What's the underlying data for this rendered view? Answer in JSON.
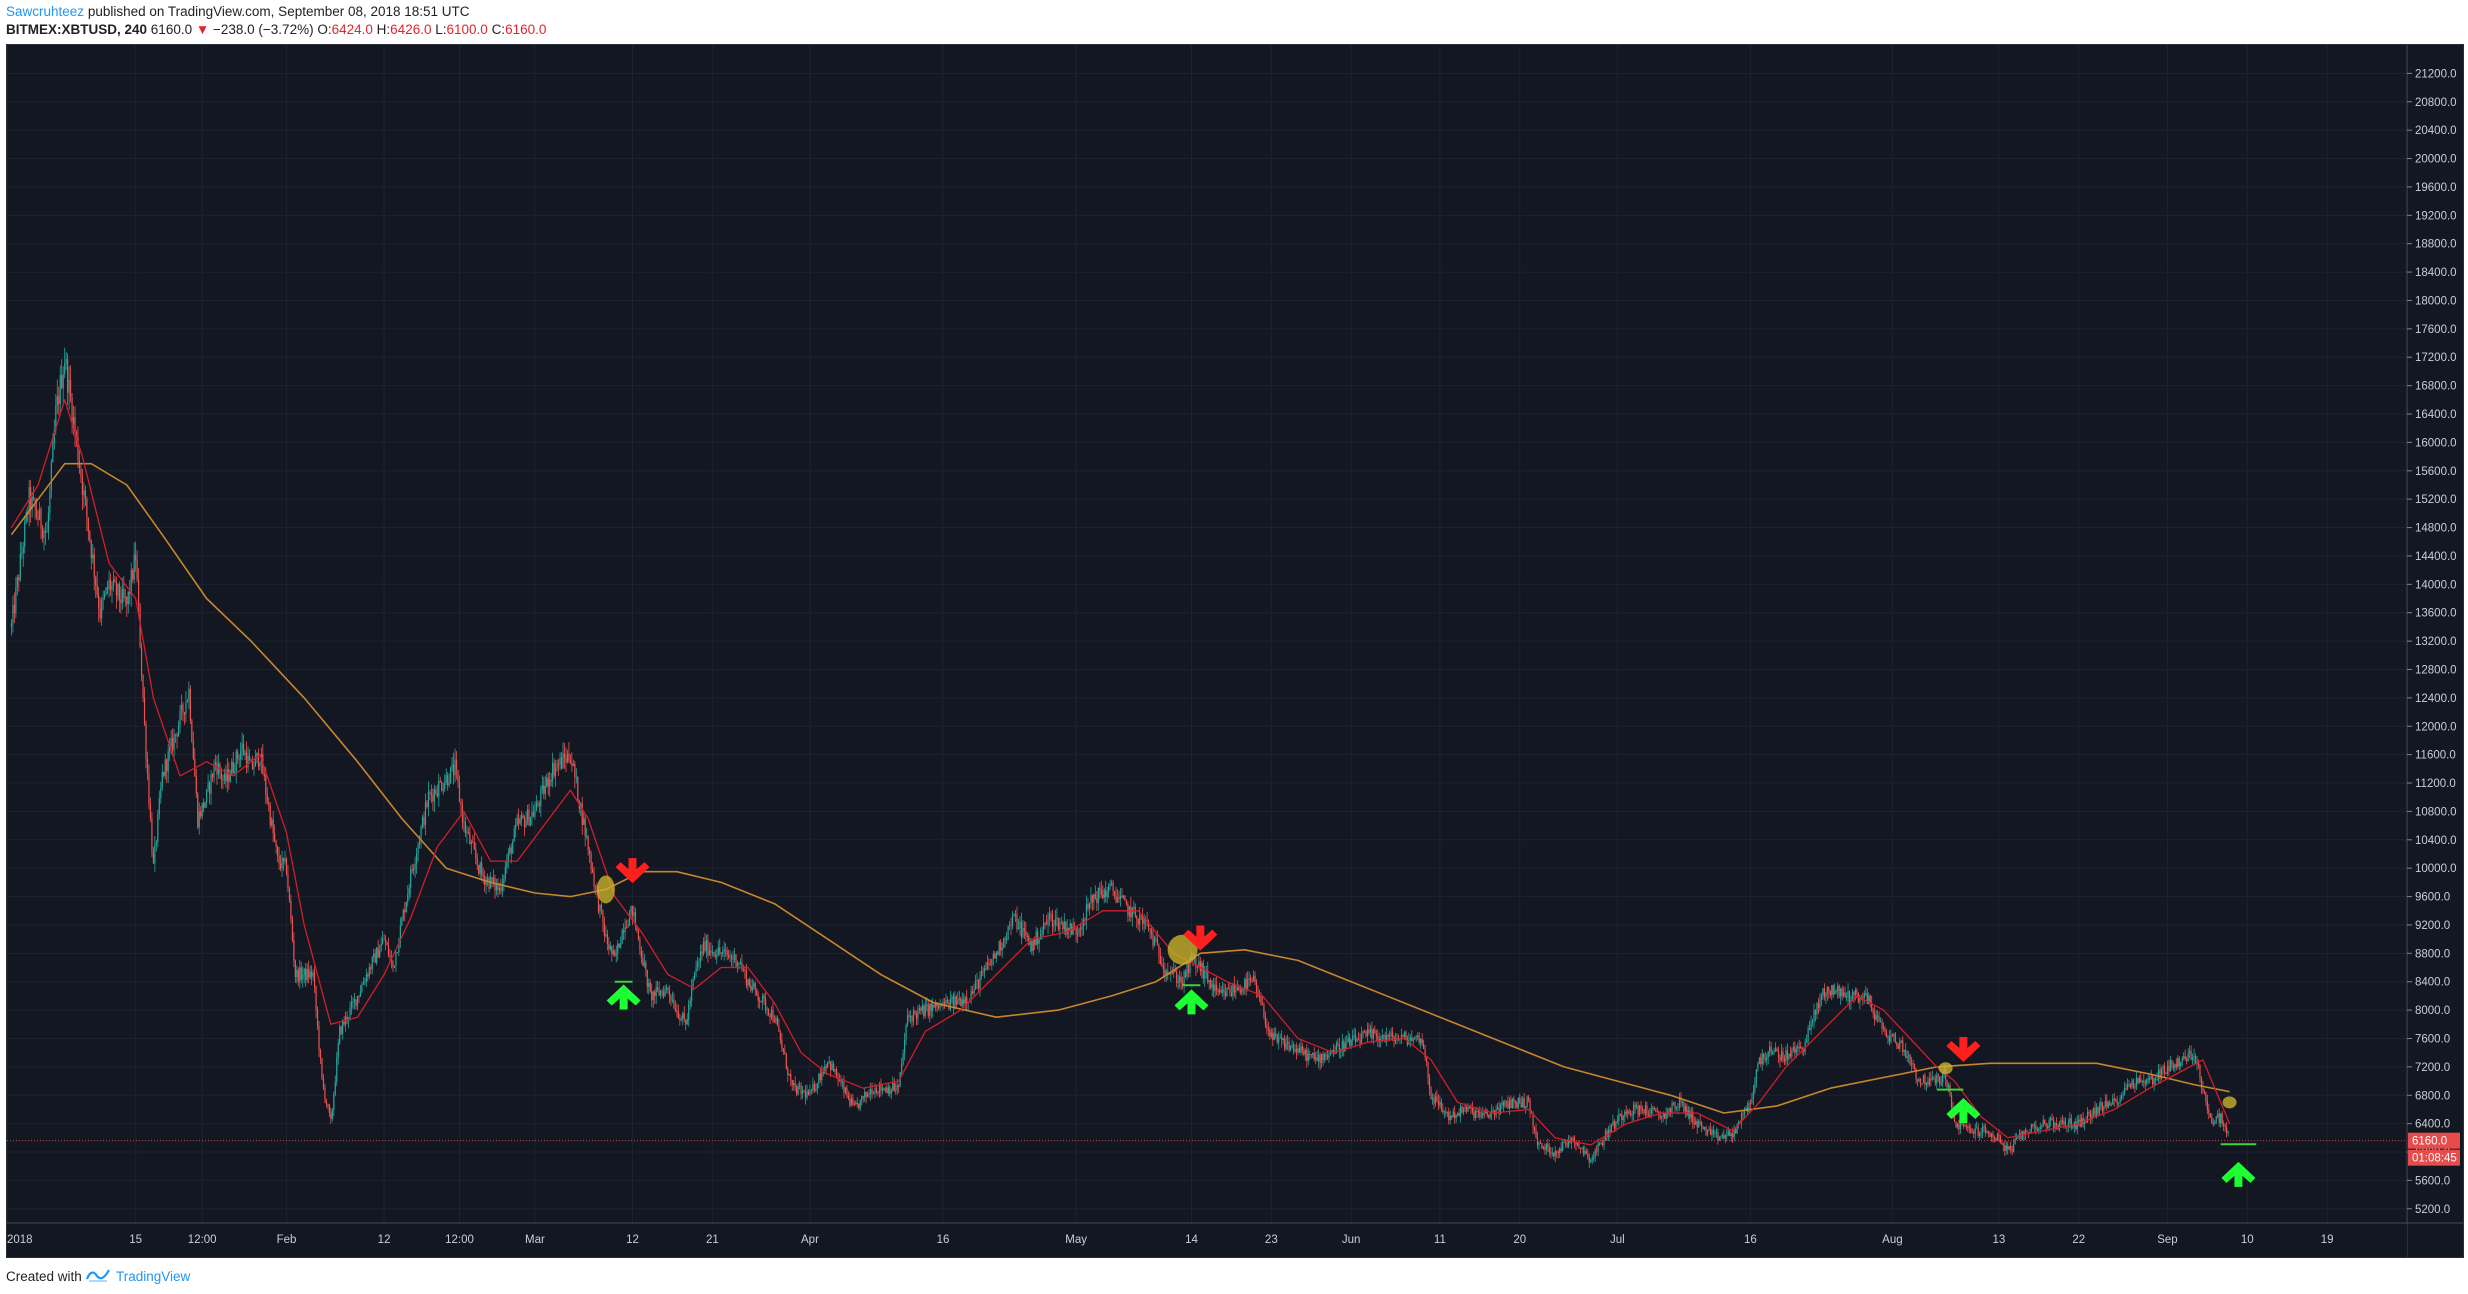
{
  "header": {
    "author": "Sawcruhteez",
    "published_text": "published on TradingView.com, September 08, 2018 18:51 UTC",
    "symbol": "BITMEX:XBTUSD, 240",
    "last": "6160.0",
    "change_arrow": "▼",
    "change": "−238.0 (−3.72%)",
    "o_label": "O:",
    "o_value": "6424.0",
    "h_label": "H:",
    "h_value": "6426.0",
    "l_label": "L:",
    "l_value": "6100.0",
    "c_label": "C:",
    "c_value": "6160.0"
  },
  "footer": {
    "created_with": "Created with",
    "brand": "TradingView"
  },
  "colors": {
    "background": "#131722",
    "grid": "#1e2230",
    "up_candle": "#26a69a",
    "down_candle": "#ef5350",
    "fast_ma": "#d11e2a",
    "slow_ma": "#c7862b",
    "highlight": "#c8b22a",
    "arrow_down": "#ff1f1f",
    "arrow_up": "#1cff32",
    "support_line": "#3cd23c",
    "price_label_bg": "#e74c4c"
  },
  "chart_data": {
    "type": "candlestick",
    "symbol": "BITMEX:XBTUSD",
    "interval": "240",
    "ylim": [
      5000,
      21600
    ],
    "y_ticks": [
      5200,
      5600,
      6000,
      6400,
      6800,
      7200,
      7600,
      8000,
      8400,
      8800,
      9200,
      9600,
      10000,
      10400,
      10800,
      11200,
      11600,
      12000,
      12400,
      12800,
      13200,
      13600,
      14000,
      14400,
      14800,
      15200,
      15600,
      16000,
      16400,
      16800,
      17200,
      17600,
      18000,
      18400,
      18800,
      19200,
      19600,
      20000,
      20400,
      20800,
      21200
    ],
    "x_range": [
      "2017-12-31T12:00",
      "2018-09-28"
    ],
    "x_ticks": [
      {
        "date": "2017-12-31T12:00",
        "label": "2018"
      },
      {
        "date": "2018-01-15",
        "label": "15"
      },
      {
        "date": "2018-01-22T12:00",
        "label": "12:00"
      },
      {
        "date": "2018-02-01",
        "label": "Feb"
      },
      {
        "date": "2018-02-12",
        "label": "12"
      },
      {
        "date": "2018-02-20T12:00",
        "label": "12:00"
      },
      {
        "date": "2018-03-01",
        "label": "Mar"
      },
      {
        "date": "2018-03-12",
        "label": "12"
      },
      {
        "date": "2018-03-21",
        "label": "21"
      },
      {
        "date": "2018-04-01",
        "label": "Apr"
      },
      {
        "date": "2018-04-16",
        "label": "16"
      },
      {
        "date": "2018-05-01",
        "label": "May"
      },
      {
        "date": "2018-05-14",
        "label": "14"
      },
      {
        "date": "2018-05-23",
        "label": "23"
      },
      {
        "date": "2018-06-01",
        "label": "Jun"
      },
      {
        "date": "2018-06-11",
        "label": "11"
      },
      {
        "date": "2018-06-20",
        "label": "20"
      },
      {
        "date": "2018-07-01",
        "label": "Jul"
      },
      {
        "date": "2018-07-16",
        "label": "16"
      },
      {
        "date": "2018-08-01",
        "label": "Aug"
      },
      {
        "date": "2018-08-13",
        "label": "13"
      },
      {
        "date": "2018-08-22",
        "label": "22"
      },
      {
        "date": "2018-09-01",
        "label": "Sep"
      },
      {
        "date": "2018-09-10",
        "label": "10"
      },
      {
        "date": "2018-09-19",
        "label": "19"
      }
    ],
    "price_path": [
      [
        "2018-01-01",
        13400
      ],
      [
        "2018-01-03",
        15200
      ],
      [
        "2018-01-05",
        14700
      ],
      [
        "2018-01-06",
        16400
      ],
      [
        "2018-01-07",
        17200
      ],
      [
        "2018-01-09",
        15400
      ],
      [
        "2018-01-11",
        13600
      ],
      [
        "2018-01-12",
        14000
      ],
      [
        "2018-01-14",
        13700
      ],
      [
        "2018-01-15",
        14400
      ],
      [
        "2018-01-16",
        12000
      ],
      [
        "2018-01-17",
        10000
      ],
      [
        "2018-01-18",
        11300
      ],
      [
        "2018-01-21",
        12500
      ],
      [
        "2018-01-22",
        10700
      ],
      [
        "2018-01-23",
        11000
      ],
      [
        "2018-01-24",
        11500
      ],
      [
        "2018-01-25",
        11200
      ],
      [
        "2018-01-27",
        11700
      ],
      [
        "2018-01-28",
        11400
      ],
      [
        "2018-01-29",
        11600
      ],
      [
        "2018-01-31",
        10100
      ],
      [
        "2018-02-01",
        10000
      ],
      [
        "2018-02-02",
        8500
      ],
      [
        "2018-02-04",
        8500
      ],
      [
        "2018-02-05",
        7000
      ],
      [
        "2018-02-06",
        6400
      ],
      [
        "2018-02-07",
        7700
      ],
      [
        "2018-02-09",
        8200
      ],
      [
        "2018-02-10",
        8500
      ],
      [
        "2018-02-12",
        9000
      ],
      [
        "2018-02-13",
        8600
      ],
      [
        "2018-02-15",
        9900
      ],
      [
        "2018-02-17",
        11000
      ],
      [
        "2018-02-20",
        11400
      ],
      [
        "2018-02-21",
        10600
      ],
      [
        "2018-02-23",
        9900
      ],
      [
        "2018-02-25",
        9700
      ],
      [
        "2018-02-27",
        10600
      ],
      [
        "2018-03-01",
        10800
      ],
      [
        "2018-03-03",
        11400
      ],
      [
        "2018-03-05",
        11600
      ],
      [
        "2018-03-07",
        10300
      ],
      [
        "2018-03-08",
        9600
      ],
      [
        "2018-03-09",
        9000
      ],
      [
        "2018-03-10",
        8700
      ],
      [
        "2018-03-11",
        9200
      ],
      [
        "2018-03-12",
        9400
      ],
      [
        "2018-03-14",
        8200
      ],
      [
        "2018-03-16",
        8300
      ],
      [
        "2018-03-17",
        8000
      ],
      [
        "2018-03-18",
        7800
      ],
      [
        "2018-03-19",
        8500
      ],
      [
        "2018-03-20",
        8900
      ],
      [
        "2018-03-22",
        8800
      ],
      [
        "2018-03-24",
        8700
      ],
      [
        "2018-03-25",
        8400
      ],
      [
        "2018-03-28",
        7900
      ],
      [
        "2018-03-30",
        6900
      ],
      [
        "2018-04-01",
        6800
      ],
      [
        "2018-04-03",
        7300
      ],
      [
        "2018-04-06",
        6600
      ],
      [
        "2018-04-08",
        6900
      ],
      [
        "2018-04-11",
        6900
      ],
      [
        "2018-04-12",
        7900
      ],
      [
        "2018-04-14",
        8000
      ],
      [
        "2018-04-17",
        8100
      ],
      [
        "2018-04-19",
        8200
      ],
      [
        "2018-04-22",
        8800
      ],
      [
        "2018-04-24",
        9300
      ],
      [
        "2018-04-26",
        8900
      ],
      [
        "2018-04-28",
        9300
      ],
      [
        "2018-05-01",
        9100
      ],
      [
        "2018-05-03",
        9600
      ],
      [
        "2018-05-05",
        9700
      ],
      [
        "2018-05-07",
        9400
      ],
      [
        "2018-05-09",
        9200
      ],
      [
        "2018-05-11",
        8600
      ],
      [
        "2018-05-13",
        8400
      ],
      [
        "2018-05-14",
        8700
      ],
      [
        "2018-05-15",
        8600
      ],
      [
        "2018-05-17",
        8200
      ],
      [
        "2018-05-19",
        8300
      ],
      [
        "2018-05-21",
        8400
      ],
      [
        "2018-05-23",
        7600
      ],
      [
        "2018-05-25",
        7500
      ],
      [
        "2018-05-28",
        7300
      ],
      [
        "2018-05-31",
        7500
      ],
      [
        "2018-06-03",
        7650
      ],
      [
        "2018-06-06",
        7600
      ],
      [
        "2018-06-09",
        7600
      ],
      [
        "2018-06-10",
        6800
      ],
      [
        "2018-06-12",
        6500
      ],
      [
        "2018-06-14",
        6600
      ],
      [
        "2018-06-16",
        6500
      ],
      [
        "2018-06-19",
        6700
      ],
      [
        "2018-06-21",
        6700
      ],
      [
        "2018-06-22",
        6100
      ],
      [
        "2018-06-24",
        6000
      ],
      [
        "2018-06-26",
        6200
      ],
      [
        "2018-06-28",
        5900
      ],
      [
        "2018-06-30",
        6300
      ],
      [
        "2018-07-02",
        6600
      ],
      [
        "2018-07-04",
        6600
      ],
      [
        "2018-07-06",
        6500
      ],
      [
        "2018-07-08",
        6700
      ],
      [
        "2018-07-10",
        6400
      ],
      [
        "2018-07-12",
        6200
      ],
      [
        "2018-07-14",
        6250
      ],
      [
        "2018-07-16",
        6700
      ],
      [
        "2018-07-17",
        7300
      ],
      [
        "2018-07-18",
        7400
      ],
      [
        "2018-07-20",
        7350
      ],
      [
        "2018-07-22",
        7500
      ],
      [
        "2018-07-24",
        8200
      ],
      [
        "2018-07-25",
        8300
      ],
      [
        "2018-07-27",
        8200
      ],
      [
        "2018-07-29",
        8200
      ],
      [
        "2018-07-31",
        7700
      ],
      [
        "2018-08-02",
        7500
      ],
      [
        "2018-08-03",
        7300
      ],
      [
        "2018-08-04",
        7000
      ],
      [
        "2018-08-06",
        7000
      ],
      [
        "2018-08-07",
        7100
      ],
      [
        "2018-08-08",
        6400
      ],
      [
        "2018-08-10",
        6300
      ],
      [
        "2018-08-11",
        6300
      ],
      [
        "2018-08-13",
        6200
      ],
      [
        "2018-08-14",
        6000
      ],
      [
        "2018-08-16",
        6300
      ],
      [
        "2018-08-18",
        6400
      ],
      [
        "2018-08-20",
        6400
      ],
      [
        "2018-08-22",
        6400
      ],
      [
        "2018-08-24",
        6600
      ],
      [
        "2018-08-26",
        6700
      ],
      [
        "2018-08-28",
        7000
      ],
      [
        "2018-08-30",
        7000
      ],
      [
        "2018-09-01",
        7200
      ],
      [
        "2018-09-03",
        7300
      ],
      [
        "2018-09-04",
        7400
      ],
      [
        "2018-09-05",
        6900
      ],
      [
        "2018-09-06",
        6400
      ],
      [
        "2018-09-07",
        6500
      ],
      [
        "2018-09-08",
        6160
      ]
    ],
    "fast_ma_path": [
      [
        "2018-01-01",
        14800
      ],
      [
        "2018-01-04",
        15400
      ],
      [
        "2018-01-07",
        16600
      ],
      [
        "2018-01-09",
        15800
      ],
      [
        "2018-01-12",
        14300
      ],
      [
        "2018-01-15",
        13800
      ],
      [
        "2018-01-17",
        12400
      ],
      [
        "2018-01-20",
        11300
      ],
      [
        "2018-01-23",
        11500
      ],
      [
        "2018-01-26",
        11300
      ],
      [
        "2018-01-29",
        11600
      ],
      [
        "2018-02-01",
        10500
      ],
      [
        "2018-02-03",
        9200
      ],
      [
        "2018-02-06",
        7800
      ],
      [
        "2018-02-09",
        7900
      ],
      [
        "2018-02-12",
        8500
      ],
      [
        "2018-02-15",
        9300
      ],
      [
        "2018-02-18",
        10300
      ],
      [
        "2018-02-21",
        10800
      ],
      [
        "2018-02-24",
        10100
      ],
      [
        "2018-02-27",
        10100
      ],
      [
        "2018-03-02",
        10600
      ],
      [
        "2018-03-05",
        11100
      ],
      [
        "2018-03-07",
        10700
      ],
      [
        "2018-03-10",
        9600
      ],
      [
        "2018-03-13",
        9100
      ],
      [
        "2018-03-16",
        8500
      ],
      [
        "2018-03-19",
        8300
      ],
      [
        "2018-03-22",
        8600
      ],
      [
        "2018-03-25",
        8600
      ],
      [
        "2018-03-28",
        8100
      ],
      [
        "2018-03-31",
        7400
      ],
      [
        "2018-04-03",
        7100
      ],
      [
        "2018-04-07",
        6900
      ],
      [
        "2018-04-11",
        7000
      ],
      [
        "2018-04-14",
        7700
      ],
      [
        "2018-04-18",
        8000
      ],
      [
        "2018-04-22",
        8500
      ],
      [
        "2018-04-26",
        9000
      ],
      [
        "2018-04-30",
        9100
      ],
      [
        "2018-05-04",
        9400
      ],
      [
        "2018-05-08",
        9400
      ],
      [
        "2018-05-12",
        8800
      ],
      [
        "2018-05-15",
        8600
      ],
      [
        "2018-05-18",
        8400
      ],
      [
        "2018-05-22",
        8200
      ],
      [
        "2018-05-26",
        7600
      ],
      [
        "2018-05-30",
        7400
      ],
      [
        "2018-06-03",
        7550
      ],
      [
        "2018-06-07",
        7600
      ],
      [
        "2018-06-10",
        7300
      ],
      [
        "2018-06-13",
        6700
      ],
      [
        "2018-06-17",
        6550
      ],
      [
        "2018-06-21",
        6600
      ],
      [
        "2018-06-24",
        6200
      ],
      [
        "2018-06-28",
        6100
      ],
      [
        "2018-07-02",
        6400
      ],
      [
        "2018-07-06",
        6550
      ],
      [
        "2018-07-10",
        6550
      ],
      [
        "2018-07-14",
        6300
      ],
      [
        "2018-07-17",
        6700
      ],
      [
        "2018-07-20",
        7200
      ],
      [
        "2018-07-24",
        7700
      ],
      [
        "2018-07-28",
        8200
      ],
      [
        "2018-07-31",
        8000
      ],
      [
        "2018-08-03",
        7600
      ],
      [
        "2018-08-06",
        7200
      ],
      [
        "2018-08-08",
        7000
      ],
      [
        "2018-08-11",
        6500
      ],
      [
        "2018-08-14",
        6200
      ],
      [
        "2018-08-18",
        6300
      ],
      [
        "2018-08-22",
        6400
      ],
      [
        "2018-08-26",
        6600
      ],
      [
        "2018-08-30",
        6900
      ],
      [
        "2018-09-02",
        7100
      ],
      [
        "2018-09-05",
        7300
      ],
      [
        "2018-09-07",
        6700
      ],
      [
        "2018-09-08",
        6400
      ]
    ],
    "slow_ma_path": [
      [
        "2018-01-01",
        14700
      ],
      [
        "2018-01-04",
        15200
      ],
      [
        "2018-01-07",
        15700
      ],
      [
        "2018-01-10",
        15700
      ],
      [
        "2018-01-14",
        15400
      ],
      [
        "2018-01-18",
        14700
      ],
      [
        "2018-01-23",
        13800
      ],
      [
        "2018-01-28",
        13200
      ],
      [
        "2018-02-03",
        12400
      ],
      [
        "2018-02-09",
        11500
      ],
      [
        "2018-02-14",
        10700
      ],
      [
        "2018-02-19",
        10000
      ],
      [
        "2018-02-24",
        9800
      ],
      [
        "2018-03-01",
        9650
      ],
      [
        "2018-03-05",
        9600
      ],
      [
        "2018-03-09",
        9700
      ],
      [
        "2018-03-13",
        9950
      ],
      [
        "2018-03-17",
        9950
      ],
      [
        "2018-03-22",
        9800
      ],
      [
        "2018-03-28",
        9500
      ],
      [
        "2018-04-03",
        9000
      ],
      [
        "2018-04-09",
        8500
      ],
      [
        "2018-04-15",
        8100
      ],
      [
        "2018-04-22",
        7900
      ],
      [
        "2018-04-29",
        8000
      ],
      [
        "2018-05-05",
        8200
      ],
      [
        "2018-05-10",
        8400
      ],
      [
        "2018-05-15",
        8800
      ],
      [
        "2018-05-20",
        8850
      ],
      [
        "2018-05-26",
        8700
      ],
      [
        "2018-06-01",
        8400
      ],
      [
        "2018-06-07",
        8100
      ],
      [
        "2018-06-13",
        7800
      ],
      [
        "2018-06-19",
        7500
      ],
      [
        "2018-06-25",
        7200
      ],
      [
        "2018-07-01",
        7000
      ],
      [
        "2018-07-07",
        6800
      ],
      [
        "2018-07-13",
        6550
      ],
      [
        "2018-07-19",
        6650
      ],
      [
        "2018-07-25",
        6900
      ],
      [
        "2018-07-31",
        7050
      ],
      [
        "2018-08-06",
        7200
      ],
      [
        "2018-08-12",
        7250
      ],
      [
        "2018-08-18",
        7250
      ],
      [
        "2018-08-24",
        7250
      ],
      [
        "2018-08-30",
        7100
      ],
      [
        "2018-09-04",
        6950
      ],
      [
        "2018-09-08",
        6850
      ]
    ],
    "current_price": {
      "value": 6160,
      "label": "6160.0",
      "countdown": "01:08:45"
    },
    "annotations": {
      "down_arrows": [
        {
          "date": "2018-03-12",
          "price": 10000
        },
        {
          "date": "2018-05-15",
          "price": 9050
        },
        {
          "date": "2018-08-09",
          "price": 7480
        }
      ],
      "up_arrows": [
        {
          "date": "2018-03-11",
          "price": 8150
        },
        {
          "date": "2018-05-14",
          "price": 8080
        },
        {
          "date": "2018-08-09",
          "price": 6550
        },
        {
          "date": "2018-09-09",
          "price": 5650
        }
      ],
      "highlight_ellipses": [
        {
          "date": "2018-03-09",
          "price": 9700,
          "size": "small"
        },
        {
          "date": "2018-05-13",
          "price": 8850,
          "size": "large"
        },
        {
          "date": "2018-08-07",
          "price": 7180,
          "size": "tiny"
        },
        {
          "date": "2018-09-08",
          "price": 6700,
          "size": "tiny"
        }
      ],
      "support_lines": [
        {
          "from": "2018-03-10",
          "to": "2018-03-12",
          "price": 8400
        },
        {
          "from": "2018-05-13",
          "to": "2018-05-15",
          "price": 8350
        },
        {
          "from": "2018-08-06",
          "to": "2018-08-09",
          "price": 6880
        },
        {
          "from": "2018-09-07",
          "to": "2018-09-11",
          "price": 6110
        }
      ]
    }
  }
}
